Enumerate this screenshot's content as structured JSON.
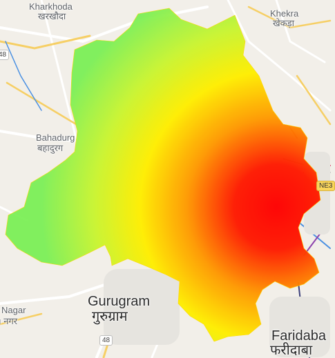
{
  "labels": {
    "kharkhoda": "Kharkhoda",
    "kharkhoda_hi": "खरखौदा",
    "khekra": "Khekra",
    "khekra_hi": "खेकड़ा",
    "bahadurgarh": "Bahadurg",
    "bahadurgarh_hi": "बहादुरग",
    "gurugram": "Gurugram",
    "gurugram_hi": "गुरुग्राम",
    "nagar": "Nagar",
    "nagar_hi": "ı नगर",
    "faridabad": "Faridaba",
    "faridabad_hi": "फरीदाबा"
  },
  "shields": {
    "shield_48_left": "48",
    "shield_48_bottom": "48",
    "shield_ne3": "NE3"
  },
  "heatmap": {
    "colors": {
      "low": "#7ef05a",
      "mid": "#ffff00",
      "high": "#ff0000"
    }
  }
}
